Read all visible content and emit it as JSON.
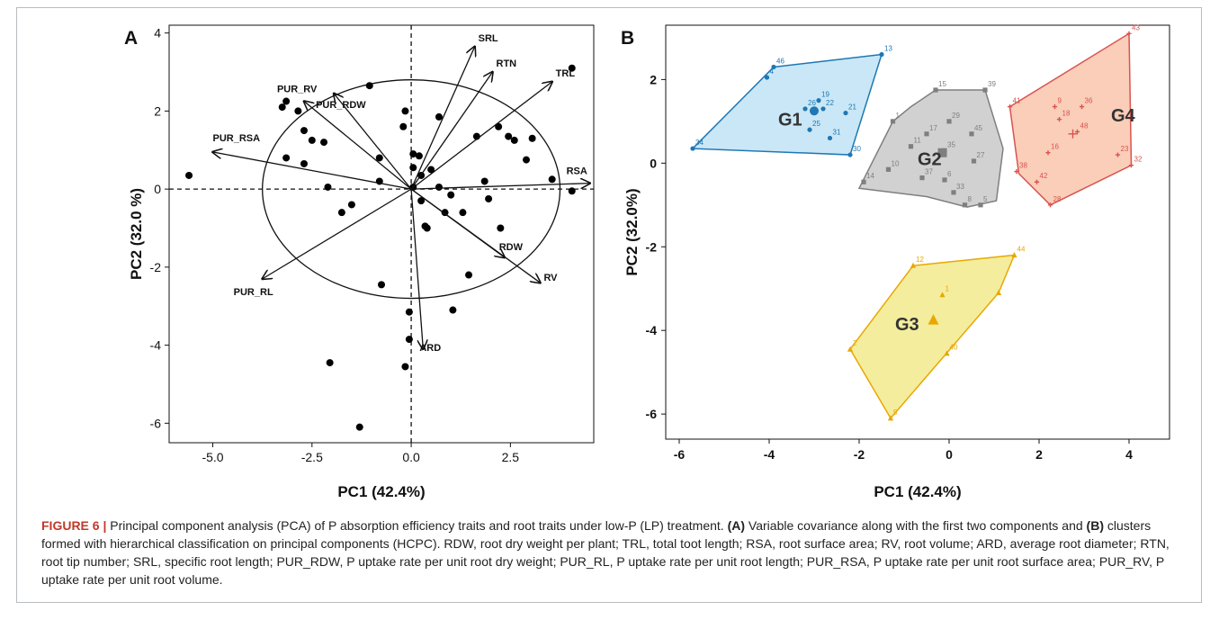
{
  "figure": {
    "caption_label": "FIGURE 6 |",
    "caption_text_1": " Principal component analysis (PCA) of P absorption efficiency traits and root traits under low-P (LP) treatment. ",
    "caption_bold_a": "(A)",
    "caption_text_2": " Variable covariance along with the first two components and ",
    "caption_bold_b": "(B)",
    "caption_text_3": " clusters formed with hierarchical classification on principal components (HCPC). RDW, root dry weight per plant; TRL, total toot length; RSA, root surface area; RV, root volume; ARD, average root diameter; RTN, root tip number; SRL, specific root length; PUR_RDW, P uptake rate per unit root dry weight; PUR_RL, P uptake rate per unit root length; PUR_RSA, P uptake rate per unit root surface area; PUR_RV, P uptake rate per unit root volume."
  },
  "chart_data": [
    {
      "panel": "A",
      "type": "scatter",
      "xlabel": "PC1 (42.4%)",
      "ylabel": "PC2 (32.0 %)",
      "xlim": [
        -6.1,
        4.6
      ],
      "ylim": [
        -6.5,
        4.2
      ],
      "xticks": [
        -5.0,
        -2.5,
        0.0,
        2.5
      ],
      "xtick_labels": [
        "-5.0",
        "-2.5",
        "0.0",
        "2.5"
      ],
      "yticks": [
        -6,
        -4,
        -2,
        0,
        2,
        4
      ],
      "ytick_labels": [
        "-6",
        "-4",
        "-2",
        "0",
        "2",
        "4"
      ],
      "circle": {
        "center": [
          0,
          0
        ],
        "radii": [
          3.75,
          2.8
        ]
      },
      "points": [
        [
          -5.6,
          0.35
        ],
        [
          -3.25,
          2.1
        ],
        [
          -3.15,
          2.25
        ],
        [
          -3.15,
          0.8
        ],
        [
          -2.85,
          2.0
        ],
        [
          -2.7,
          1.5
        ],
        [
          -2.7,
          0.65
        ],
        [
          -2.5,
          1.25
        ],
        [
          -2.2,
          1.2
        ],
        [
          -2.1,
          0.05
        ],
        [
          -1.75,
          -0.6
        ],
        [
          -1.5,
          -0.4
        ],
        [
          -1.05,
          2.65
        ],
        [
          -0.8,
          0.2
        ],
        [
          -0.8,
          0.8
        ],
        [
          -0.75,
          -2.45
        ],
        [
          -0.2,
          1.6
        ],
        [
          -0.15,
          2.0
        ],
        [
          0.05,
          0.9
        ],
        [
          0.05,
          0.55
        ],
        [
          0.05,
          0.05
        ],
        [
          0.2,
          0.85
        ],
        [
          0.25,
          0.35
        ],
        [
          0.25,
          -0.3
        ],
        [
          0.35,
          -0.95
        ],
        [
          0.4,
          -1.0
        ],
        [
          0.5,
          0.5
        ],
        [
          0.7,
          1.85
        ],
        [
          0.7,
          0.05
        ],
        [
          0.85,
          -0.6
        ],
        [
          1.0,
          -0.15
        ],
        [
          1.3,
          -0.6
        ],
        [
          1.45,
          -2.2
        ],
        [
          1.65,
          1.35
        ],
        [
          1.85,
          0.2
        ],
        [
          1.95,
          -0.25
        ],
        [
          2.2,
          1.6
        ],
        [
          2.25,
          -1.0
        ],
        [
          2.45,
          1.35
        ],
        [
          2.6,
          1.25
        ],
        [
          2.9,
          0.75
        ],
        [
          3.05,
          1.3
        ],
        [
          3.55,
          0.25
        ],
        [
          4.05,
          3.1
        ],
        [
          4.05,
          -0.05
        ],
        [
          -0.05,
          -3.15
        ],
        [
          -0.05,
          -3.85
        ],
        [
          1.05,
          -3.1
        ],
        [
          -0.15,
          -4.55
        ],
        [
          -2.05,
          -4.45
        ],
        [
          -1.3,
          -6.1
        ]
      ],
      "vectors": [
        {
          "name": "SRL",
          "x": 1.6,
          "y": 3.65
        },
        {
          "name": "RTN",
          "x": 2.05,
          "y": 3.0
        },
        {
          "name": "TRL",
          "x": 3.55,
          "y": 2.75
        },
        {
          "name": "RSA",
          "x": 4.5,
          "y": 0.15
        },
        {
          "name": "RDW",
          "x": 2.35,
          "y": -1.75
        },
        {
          "name": "RV",
          "x": 3.25,
          "y": -2.4
        },
        {
          "name": "ARD",
          "x": 0.3,
          "y": -4.1
        },
        {
          "name": "PUR_RL",
          "x": -3.75,
          "y": -2.3
        },
        {
          "name": "PUR_RSA",
          "x": -5.0,
          "y": 0.95
        },
        {
          "name": "PUR_RV",
          "x": -2.7,
          "y": 2.25
        },
        {
          "name": "PUR_RDW",
          "x": -1.95,
          "y": 2.45
        }
      ]
    },
    {
      "panel": "B",
      "type": "scatter",
      "xlabel": "PC1 (42.4%)",
      "ylabel": "PC2 (32.0%)",
      "xlim": [
        -6.3,
        4.9
      ],
      "ylim": [
        -6.6,
        3.3
      ],
      "xticks": [
        -6,
        -4,
        -2,
        0,
        2,
        4
      ],
      "xtick_labels": [
        "-6",
        "-4",
        "-2",
        "0",
        "2",
        "4"
      ],
      "yticks": [
        -6,
        -4,
        -2,
        0,
        2
      ],
      "ytick_labels": [
        "-6",
        "-4",
        "-2",
        "0",
        "2"
      ],
      "clusters": [
        {
          "name": "G1",
          "color": "#1f77b4",
          "fill": "#bfe3f5",
          "marker": "dot",
          "label_pos": [
            -3.8,
            0.9
          ],
          "hull": [
            [
              -5.7,
              0.35
            ],
            [
              -3.9,
              2.3
            ],
            [
              -1.5,
              2.6
            ],
            [
              -2.2,
              0.2
            ]
          ],
          "points": [
            {
              "id": "34",
              "x": -5.7,
              "y": 0.35
            },
            {
              "id": "46",
              "x": -3.9,
              "y": 2.3
            },
            {
              "id": "13",
              "x": -1.5,
              "y": 2.6
            },
            {
              "id": "30",
              "x": -2.2,
              "y": 0.2
            },
            {
              "id": "4",
              "x": -4.05,
              "y": 2.05
            },
            {
              "id": "19",
              "x": -2.9,
              "y": 1.5
            },
            {
              "id": "26",
              "x": -3.2,
              "y": 1.3
            },
            {
              "id": "22",
              "x": -2.8,
              "y": 1.3
            },
            {
              "id": "21",
              "x": -2.3,
              "y": 1.2
            },
            {
              "id": "25",
              "x": -3.1,
              "y": 0.8
            },
            {
              "id": "31",
              "x": -2.65,
              "y": 0.6
            }
          ],
          "centroid": [
            -3.0,
            1.25
          ]
        },
        {
          "name": "G2",
          "color": "#7f7f7f",
          "fill": "#c9c9c9",
          "marker": "square",
          "label_pos": [
            -0.7,
            -0.05
          ],
          "hull": [
            [
              -2.0,
              -0.6
            ],
            [
              -1.25,
              1.0
            ],
            [
              -0.85,
              1.35
            ],
            [
              -0.3,
              1.75
            ],
            [
              0.8,
              1.75
            ],
            [
              1.2,
              0.35
            ],
            [
              1.05,
              -0.9
            ],
            [
              0.4,
              -1.05
            ],
            [
              -0.5,
              -0.8
            ]
          ],
          "points": [
            {
              "id": "15",
              "x": -0.3,
              "y": 1.75
            },
            {
              "id": "39",
              "x": 0.8,
              "y": 1.75
            },
            {
              "id": "1",
              "x": -1.25,
              "y": 1.0
            },
            {
              "id": "29",
              "x": 0.0,
              "y": 1.0
            },
            {
              "id": "17",
              "x": -0.5,
              "y": 0.7
            },
            {
              "id": "45",
              "x": 0.5,
              "y": 0.7
            },
            {
              "id": "11",
              "x": -0.85,
              "y": 0.4
            },
            {
              "id": "35",
              "x": -0.1,
              "y": 0.3
            },
            {
              "id": "10",
              "x": -1.35,
              "y": -0.15
            },
            {
              "id": "27",
              "x": 0.55,
              "y": 0.05
            },
            {
              "id": "14",
              "x": -1.9,
              "y": -0.45
            },
            {
              "id": "37",
              "x": -0.6,
              "y": -0.35
            },
            {
              "id": "6",
              "x": -0.1,
              "y": -0.4
            },
            {
              "id": "33",
              "x": 0.1,
              "y": -0.7
            },
            {
              "id": "8",
              "x": 0.35,
              "y": -1.0
            },
            {
              "id": "5",
              "x": 0.7,
              "y": -1.0
            }
          ],
          "centroid": [
            -0.15,
            0.25
          ]
        },
        {
          "name": "G3",
          "color": "#e8a800",
          "fill": "#f2ea8c",
          "marker": "triangle",
          "label_pos": [
            -1.2,
            -4.0
          ],
          "hull": [
            [
              -2.2,
              -4.45
            ],
            [
              -1.3,
              -6.1
            ],
            [
              1.1,
              -3.1
            ],
            [
              1.45,
              -2.2
            ],
            [
              -0.8,
              -2.45
            ]
          ],
          "points": [
            {
              "id": "12",
              "x": -0.8,
              "y": -2.45
            },
            {
              "id": "44",
              "x": 1.45,
              "y": -2.2
            },
            {
              "id": "1",
              "x": -0.15,
              "y": -3.15
            },
            {
              "id": "2",
              "x": -2.2,
              "y": -4.45
            },
            {
              "id": "40",
              "x": -0.05,
              "y": -4.55
            },
            {
              "id": "5",
              "x": -1.3,
              "y": -6.1
            },
            {
              "id": "",
              "x": 1.1,
              "y": -3.1
            }
          ],
          "centroid": [
            -0.35,
            -3.75
          ]
        },
        {
          "name": "G4",
          "color": "#d9534f",
          "fill": "#f9c5ad",
          "marker": "cross",
          "label_pos": [
            3.6,
            1.0
          ],
          "hull": [
            [
              1.35,
              1.35
            ],
            [
              4.0,
              3.1
            ],
            [
              4.05,
              -0.05
            ],
            [
              2.25,
              -1.0
            ],
            [
              1.55,
              -0.25
            ]
          ],
          "points": [
            {
              "id": "43",
              "x": 4.0,
              "y": 3.1
            },
            {
              "id": "41",
              "x": 1.35,
              "y": 1.35
            },
            {
              "id": "9",
              "x": 2.35,
              "y": 1.35
            },
            {
              "id": "36",
              "x": 2.95,
              "y": 1.35
            },
            {
              "id": "18",
              "x": 2.45,
              "y": 1.05
            },
            {
              "id": "48",
              "x": 2.85,
              "y": 0.75
            },
            {
              "id": "16",
              "x": 2.2,
              "y": 0.25
            },
            {
              "id": "23",
              "x": 3.75,
              "y": 0.2
            },
            {
              "id": "32",
              "x": 4.05,
              "y": -0.05
            },
            {
              "id": "38",
              "x": 1.5,
              "y": -0.2
            },
            {
              "id": "42",
              "x": 1.95,
              "y": -0.45
            },
            {
              "id": "28",
              "x": 2.25,
              "y": -1.0
            }
          ],
          "centroid": [
            2.75,
            0.7
          ]
        }
      ]
    }
  ]
}
